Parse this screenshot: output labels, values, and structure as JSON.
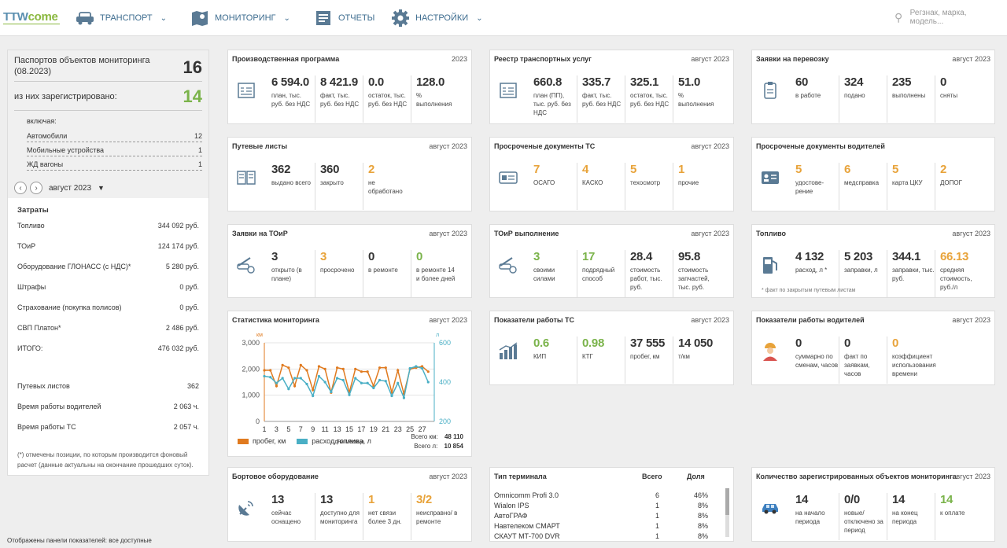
{
  "nav": {
    "logo_a": "TTW",
    "logo_b": "come",
    "items": [
      {
        "label": "ТРАНСПОРТ"
      },
      {
        "label": "МОНИТОРИНГ"
      },
      {
        "label": "ОТЧЕТЫ"
      },
      {
        "label": "НАСТРОЙКИ"
      }
    ],
    "search_placeholder": "Регзнак, марка, модель..."
  },
  "left": {
    "passports_label": "Паспортов объектов мониторинга (08.2023)",
    "passports_value": "16",
    "registered_label": "из них зарегистрировано:",
    "registered_value": "14",
    "including": "включая:",
    "items": [
      {
        "label": "Автомобили",
        "value": "12"
      },
      {
        "label": "Мобильные устройства",
        "value": "1"
      },
      {
        "label": "ЖД вагоны",
        "value": "1"
      }
    ],
    "period": "август 2023",
    "costs_title": "Затраты",
    "costs": [
      {
        "label": "Топливо",
        "value": "344 092 руб."
      },
      {
        "label": "ТОиР",
        "value": "124 174 руб."
      },
      {
        "label": "Оборудование ГЛОНАСС (с НДС)*",
        "value": "5 280 руб."
      },
      {
        "label": "Штрафы",
        "value": "0 руб."
      },
      {
        "label": "Страхование (покупка полисов)",
        "value": "0 руб."
      },
      {
        "label": "СВП Платон*",
        "value": "2 486 руб."
      },
      {
        "label": "ИТОГО:",
        "value": "476 032 руб."
      }
    ],
    "extra": [
      {
        "label": "Путевых листов",
        "value": "362"
      },
      {
        "label": "Время работы водителей",
        "value": "2 063 ч."
      },
      {
        "label": "Время работы ТС",
        "value": "2 057 ч."
      }
    ],
    "note": "(*) отмечены позиции, по которым производится фоновый расчет (данные актуальны на окончание прошедших суток)."
  },
  "footer": "Отображены панели показателей: все доступные",
  "cards": [
    {
      "title": "Производственная программа",
      "period": "2023",
      "stats": [
        {
          "v": "6 594.0",
          "l": "план, тыс. руб. без НДС"
        },
        {
          "v": "8 421.9",
          "l": "факт, тыс. руб. без НДС"
        },
        {
          "v": "0.0",
          "l": "остаток, тыс. руб. без НДС"
        },
        {
          "v": "128.0",
          "l": "% выполнения"
        }
      ]
    },
    {
      "title": "Реестр транспортных услуг",
      "period": "август 2023",
      "stats": [
        {
          "v": "660.8",
          "l": "план (ПП), тыс. руб. без НДС"
        },
        {
          "v": "335.7",
          "l": "факт, тыс. руб. без НДС"
        },
        {
          "v": "325.1",
          "l": "остаток, тыс. руб. без НДС"
        },
        {
          "v": "51.0",
          "l": "% выполнения"
        }
      ]
    },
    {
      "title": "Заявки на перевозку",
      "period": "август 2023",
      "stats": [
        {
          "v": "60",
          "l": "в работе"
        },
        {
          "v": "324",
          "l": "подано"
        },
        {
          "v": "235",
          "l": "выполнены"
        },
        {
          "v": "0",
          "l": "сняты"
        }
      ]
    },
    {
      "title": "Путевые листы",
      "period": "август 2023",
      "stats": [
        {
          "v": "362",
          "l": "выдано всего"
        },
        {
          "v": "360",
          "l": "закрыто"
        },
        {
          "v": "2",
          "l": "не обработано"
        }
      ]
    },
    {
      "title": "Просроченые документы ТС",
      "period": "август 2023",
      "stats": [
        {
          "v": "7",
          "l": "ОСАГО"
        },
        {
          "v": "4",
          "l": "КАСКО"
        },
        {
          "v": "5",
          "l": "техосмотр"
        },
        {
          "v": "1",
          "l": "прочие"
        }
      ]
    },
    {
      "title": "Просроченые документы водителей",
      "period": "",
      "stats": [
        {
          "v": "5",
          "l": "удостове-рение"
        },
        {
          "v": "6",
          "l": "медсправка"
        },
        {
          "v": "5",
          "l": "карта ЦКУ"
        },
        {
          "v": "2",
          "l": "ДОПОГ"
        }
      ]
    },
    {
      "title": "Заявки на ТОиР",
      "period": "август 2023",
      "stats": [
        {
          "v": "3",
          "l": "открыто (в плане)"
        },
        {
          "v": "3",
          "l": "просрочено"
        },
        {
          "v": "0",
          "l": "в ремонте"
        },
        {
          "v": "0",
          "l": "в ремонте 14 и более дней"
        }
      ]
    },
    {
      "title": "ТОиР выполнение",
      "period": "август 2023",
      "stats": [
        {
          "v": "3",
          "l": "своими силами"
        },
        {
          "v": "17",
          "l": "подрядный способ"
        },
        {
          "v": "28.4",
          "l": "стоимость работ, тыс. руб."
        },
        {
          "v": "95.8",
          "l": "стоимость запчастей, тыс. руб."
        }
      ]
    },
    {
      "title": "Топливо",
      "period": "август 2023",
      "stats": [
        {
          "v": "4 132",
          "l": "расход, л *"
        },
        {
          "v": "5 203",
          "l": "заправки, л"
        },
        {
          "v": "344.1",
          "l": "заправки, тыс. руб."
        },
        {
          "v": "66.13",
          "l": "средняя стоимость, руб./л"
        }
      ],
      "note": "* факт по закрытым путевым листам"
    },
    {
      "title": "Статистика мониторинга",
      "period": "август 2023"
    },
    {
      "title": "Показатели работы ТС",
      "period": "август 2023",
      "stats": [
        {
          "v": "0.6",
          "l": "КИП"
        },
        {
          "v": "0.98",
          "l": "КТГ"
        },
        {
          "v": "37 555",
          "l": "пробег, км"
        },
        {
          "v": "14 050",
          "l": "т/км"
        }
      ]
    },
    {
      "title": "Показатели работы водителей",
      "period": "август 2023",
      "stats": [
        {
          "v": "0",
          "l": "суммарно по сменам, часов"
        },
        {
          "v": "0",
          "l": "факт по заявкам, часов"
        },
        {
          "v": "0",
          "l": "коэффициент использования времени"
        }
      ]
    },
    {
      "title": "Бортовое оборудование",
      "period": "август 2023",
      "stats": [
        {
          "v": "13",
          "l": "сейчас оснащено"
        },
        {
          "v": "13",
          "l": "доступно для мониторинга"
        },
        {
          "v": "1",
          "l": "нет связи более 3 дн."
        },
        {
          "v": "3/2",
          "l": "неисправно/ в ремонте"
        }
      ]
    },
    {
      "title": "Тип терминала",
      "h_total": "Всего",
      "h_share": "Доля",
      "rows": [
        {
          "n": "Omnicomm Profi 3.0",
          "t": "6",
          "s": "46%"
        },
        {
          "n": "Wialon IPS",
          "t": "1",
          "s": "8%"
        },
        {
          "n": "АвтоГРАФ",
          "t": "1",
          "s": "8%"
        },
        {
          "n": "Навтелеком СМАРТ",
          "t": "1",
          "s": "8%"
        },
        {
          "n": "СКАУТ МТ-700 DVR",
          "t": "1",
          "s": "8%"
        }
      ]
    },
    {
      "title": "Количество зарегистрированных объектов мониторинга",
      "period": "август 2023",
      "stats": [
        {
          "v": "14",
          "l": "на начало периода"
        },
        {
          "v": "0/0",
          "l": "новые/ отключено за период"
        },
        {
          "v": "14",
          "l": "на конец периода"
        },
        {
          "v": "14",
          "l": "к оплате"
        }
      ]
    }
  ],
  "chart_data": {
    "type": "line",
    "x": [
      1,
      2,
      3,
      4,
      5,
      6,
      7,
      8,
      9,
      10,
      11,
      12,
      13,
      14,
      15,
      16,
      17,
      18,
      19,
      20,
      21,
      22,
      23,
      24,
      25,
      26,
      27,
      28
    ],
    "xticks": [
      "1",
      "3",
      "5",
      "7",
      "9",
      "11",
      "13",
      "15",
      "17",
      "19",
      "21",
      "23",
      "25",
      "27"
    ],
    "xlabel": "дни месяца",
    "ylabel_left": "км",
    "ylabel_right": "л",
    "ylim_left": [
      0,
      3000
    ],
    "yticks_left": [
      "0",
      "1,000",
      "2,000",
      "3,000"
    ],
    "ylim_right": [
      200,
      600
    ],
    "yticks_right": [
      "200",
      "400",
      "600"
    ],
    "series": [
      {
        "name": "пробег, км",
        "color": "#e07a1f",
        "axis": "left",
        "values": [
          1950,
          1950,
          1350,
          2150,
          2050,
          1350,
          2150,
          1950,
          1200,
          2100,
          2000,
          1100,
          2050,
          2000,
          1100,
          2000,
          1900,
          1900,
          1350,
          2050,
          2050,
          1100,
          1950,
          1050,
          2000,
          2050,
          2100,
          1900
        ]
      },
      {
        "name": "расход топлива, л",
        "color": "#4aafc5",
        "axis": "right",
        "values": [
          430,
          425,
          395,
          420,
          365,
          420,
          420,
          390,
          330,
          430,
          400,
          350,
          420,
          410,
          335,
          420,
          395,
          395,
          370,
          410,
          405,
          330,
          395,
          320,
          470,
          480,
          470,
          400
        ]
      }
    ],
    "totals": [
      {
        "label": "Всего км:",
        "value": "48 110"
      },
      {
        "label": "Всего л:",
        "value": "10 854"
      }
    ]
  },
  "colors": {
    "accent": "#3d6c8f",
    "green": "#7ab34a",
    "orange": "#e8a33a"
  }
}
